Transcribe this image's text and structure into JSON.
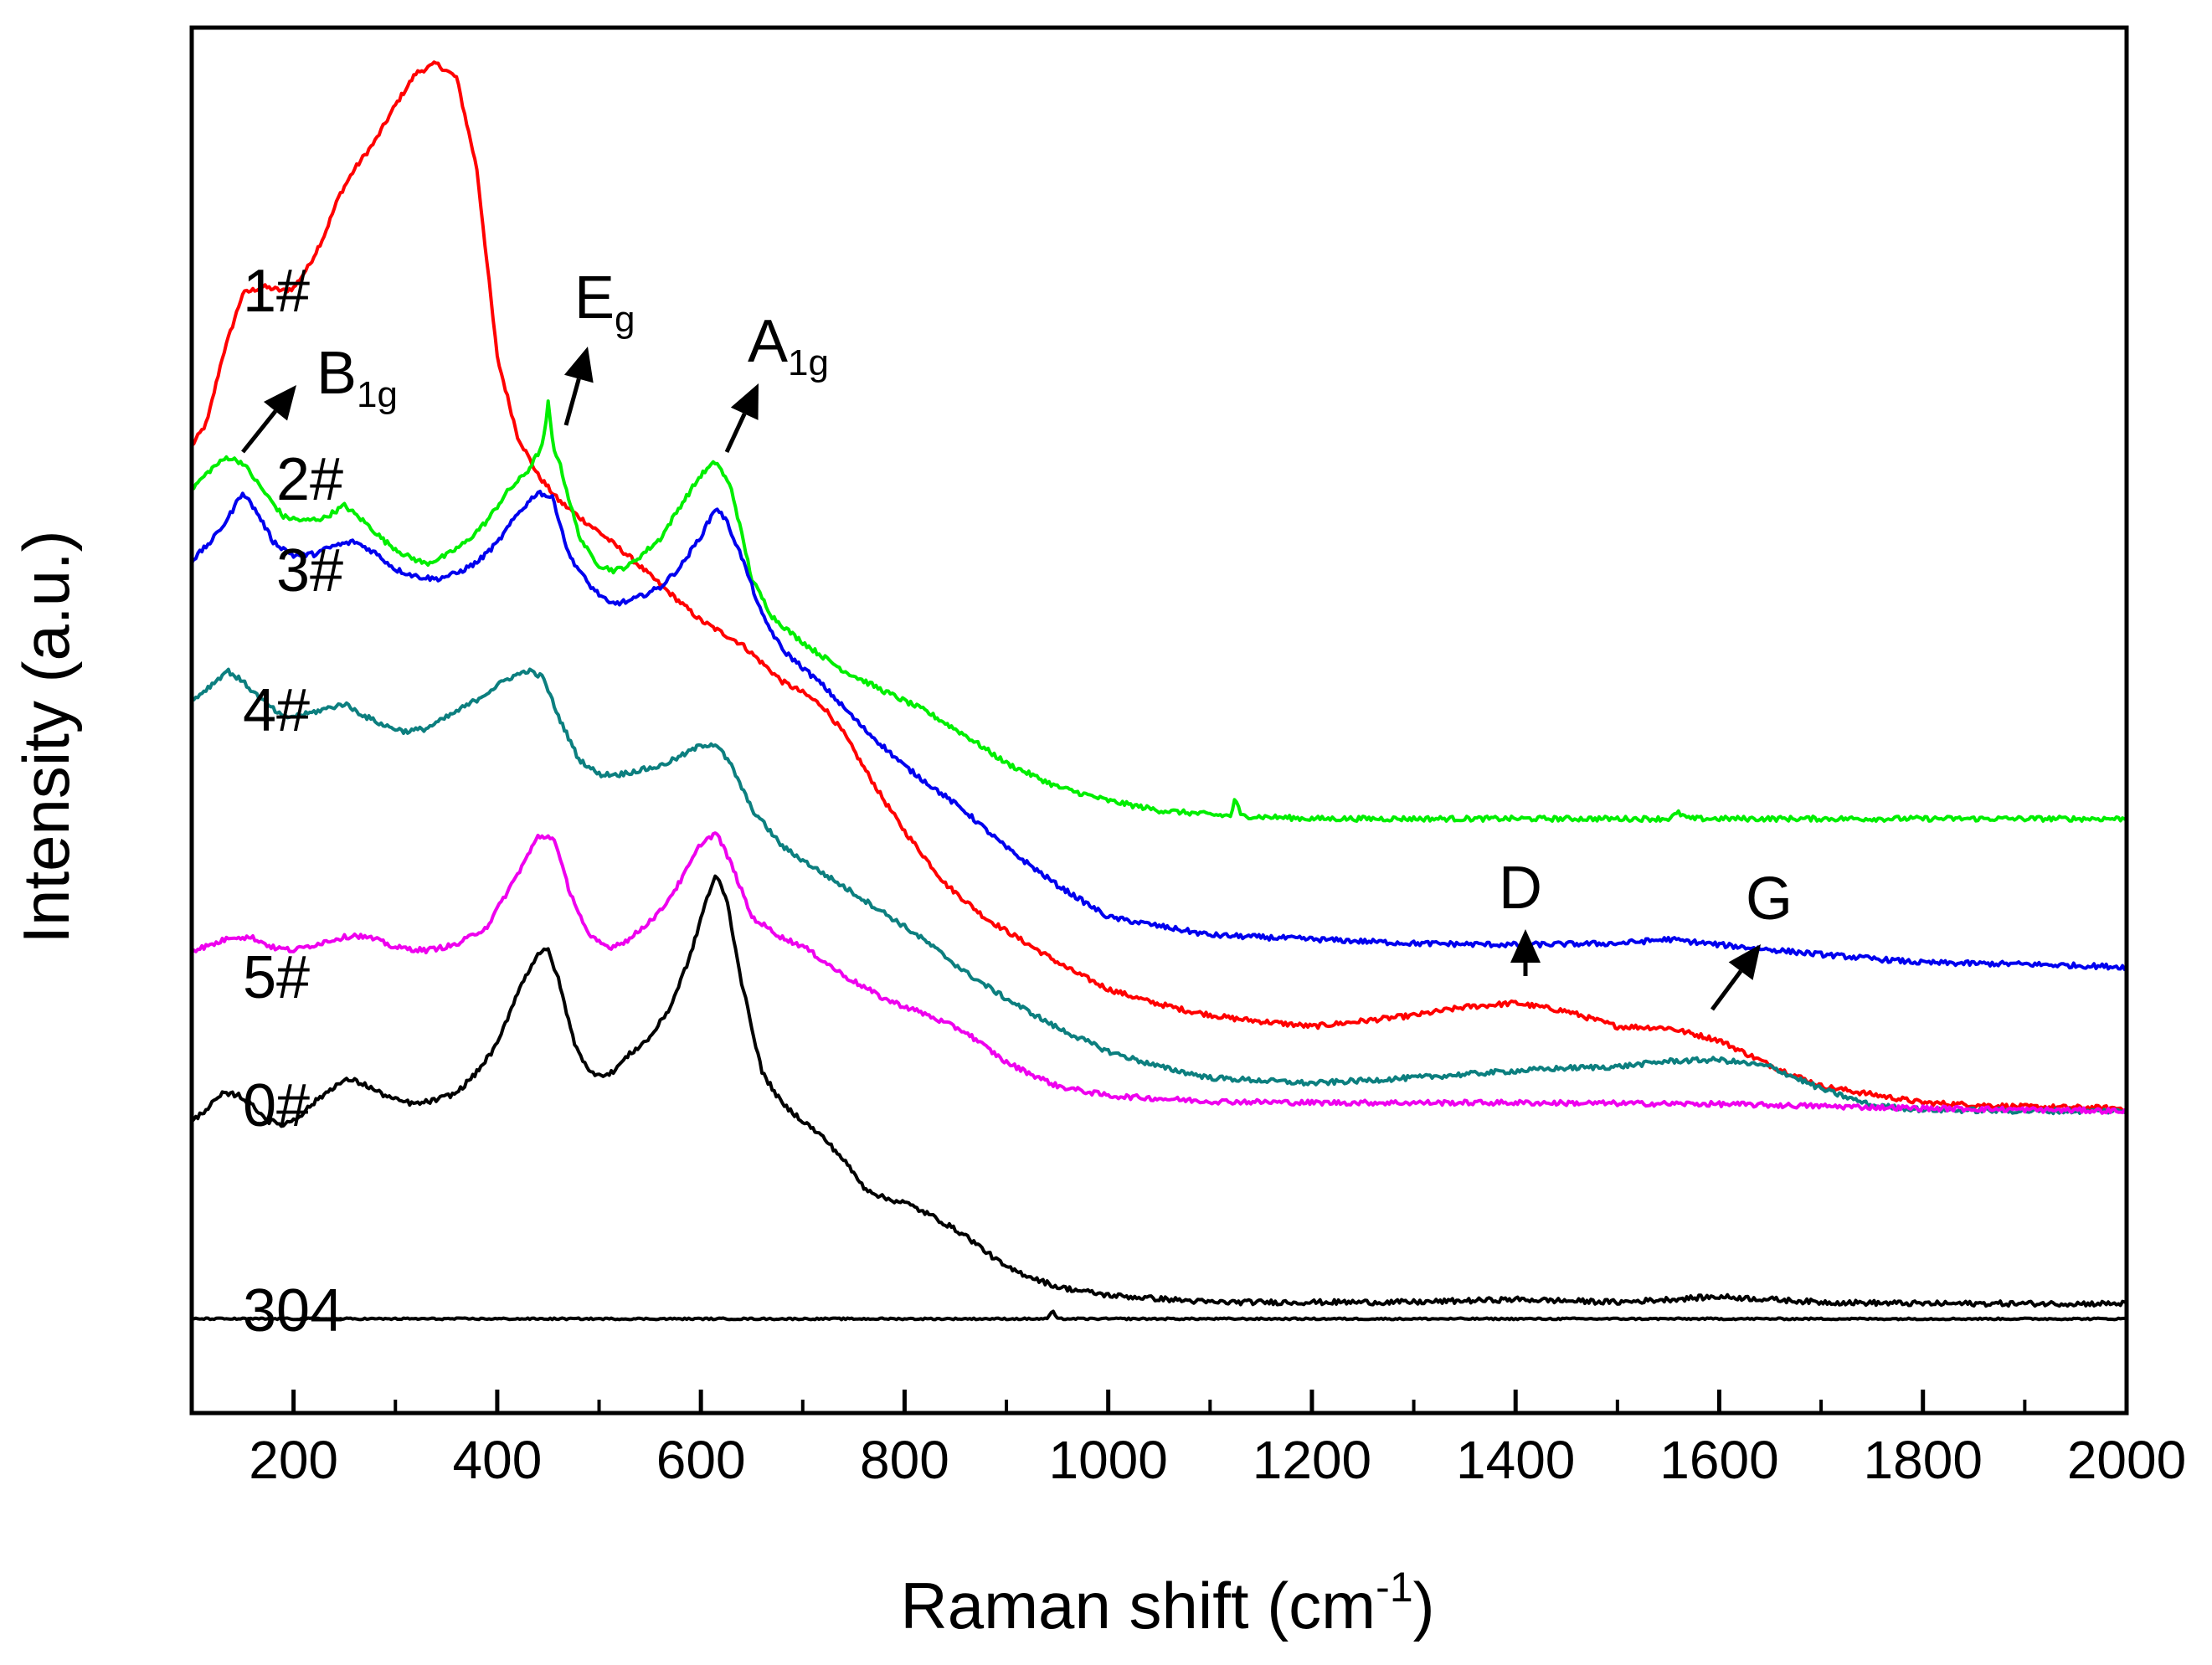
{
  "chart_data": {
    "type": "line",
    "title": "",
    "xlabel": "Raman shift (cm",
    "xlabel_superscript": "-1",
    "xlabel_close": ")",
    "ylabel": "Intensity (a.u.)",
    "xlim": [
      100,
      2000
    ],
    "ylim": [
      0,
      100
    ],
    "x_ticks": [
      200,
      400,
      600,
      800,
      1000,
      1200,
      1400,
      1600,
      1800,
      2000
    ],
    "x_tick_labels": [
      "200",
      "400",
      "600",
      "800",
      "1000",
      "1200",
      "1400",
      "1600",
      "1800",
      "2000"
    ],
    "y_ticks_labeled": false,
    "grid": false,
    "legend": "none (curves labeled inline)",
    "series": [
      {
        "name": "1#",
        "color": "#ff0000",
        "x": [
          100,
          115,
          130,
          150,
          170,
          190,
          200,
          215,
          230,
          245,
          260,
          280,
          300,
          320,
          340,
          360,
          380,
          400,
          420,
          440,
          460,
          480,
          500,
          530,
          560,
          600,
          640,
          680,
          700,
          720,
          740,
          760,
          780,
          800,
          840,
          880,
          920,
          960,
          1000,
          1040,
          1080,
          1120,
          1200,
          1300,
          1350,
          1400,
          1450,
          1500,
          1550,
          1600,
          1650,
          1700,
          1800,
          1900,
          2000
        ],
        "y": [
          69.8,
          71.5,
          76.2,
          80.8,
          81.3,
          81.0,
          81.2,
          82.8,
          85.0,
          87.9,
          89.8,
          91.8,
          94.4,
          96.7,
          97.4,
          96.4,
          89.8,
          76.2,
          70.5,
          67.7,
          65.9,
          64.7,
          63.6,
          61.8,
          59.8,
          57.2,
          55.5,
          52.8,
          52.0,
          51.0,
          49.1,
          46.6,
          44.2,
          42.0,
          38.2,
          35.7,
          33.9,
          32.1,
          30.6,
          29.7,
          29.0,
          28.5,
          27.9,
          28.7,
          29.3,
          29.6,
          29.0,
          27.9,
          27.8,
          26.9,
          25.1,
          23.6,
          22.4,
          22.1,
          22.0
        ]
      },
      {
        "name": "2#",
        "color": "#00ee00",
        "x": [
          100,
          120,
          135,
          150,
          170,
          190,
          210,
          230,
          250,
          270,
          290,
          310,
          330,
          350,
          370,
          390,
          410,
          430,
          445,
          450,
          455,
          460,
          470,
          480,
          490,
          500,
          515,
          530,
          560,
          580,
          600,
          615,
          630,
          650,
          670,
          690,
          710,
          740,
          780,
          820,
          860,
          900,
          950,
          1000,
          1050,
          1100,
          1120,
          1125,
          1130,
          1200,
          1300,
          1400,
          1500,
          1550,
          1560,
          1570,
          1700,
          1800,
          1900,
          2000
        ],
        "y": [
          66.7,
          68.2,
          69.0,
          68.6,
          66.6,
          64.7,
          64.4,
          64.6,
          65.5,
          64.3,
          62.9,
          61.9,
          61.3,
          61.9,
          62.9,
          64.4,
          66.5,
          68.0,
          69.9,
          72.9,
          69.7,
          68.9,
          66.1,
          63.4,
          62.1,
          61.2,
          60.8,
          61.2,
          63.1,
          65.5,
          67.7,
          68.7,
          66.7,
          60.2,
          57.5,
          56.2,
          55.1,
          53.6,
          52.1,
          50.7,
          48.9,
          46.9,
          45.2,
          44.2,
          43.5,
          43.2,
          43.1,
          44.4,
          43.1,
          42.9,
          42.9,
          42.9,
          42.9,
          42.9,
          43.3,
          42.9,
          42.9,
          42.9,
          42.9,
          42.9
        ]
      },
      {
        "name": "3#",
        "color": "#0000ee",
        "x": [
          100,
          120,
          135,
          150,
          165,
          180,
          200,
          220,
          240,
          260,
          280,
          300,
          320,
          340,
          360,
          380,
          400,
          420,
          440,
          455,
          470,
          490,
          510,
          530,
          560,
          580,
          600,
          615,
          625,
          640,
          660,
          680,
          700,
          720,
          760,
          800,
          860,
          900,
          950,
          1000,
          1100,
          1200,
          1300,
          1400,
          1500,
          1550,
          1600,
          1700,
          1800,
          1900,
          2000
        ],
        "y": [
          61.5,
          63.0,
          64.5,
          66.5,
          64.9,
          62.9,
          61.9,
          62.0,
          62.6,
          62.9,
          62.1,
          60.9,
          60.4,
          60.2,
          60.6,
          61.4,
          62.8,
          64.9,
          66.5,
          66.0,
          62.0,
          59.8,
          58.4,
          58.6,
          59.6,
          61.1,
          63.3,
          65.4,
          64.4,
          61.8,
          57.6,
          55.1,
          53.8,
          52.5,
          49.4,
          46.7,
          43.4,
          40.8,
          38.1,
          35.8,
          34.5,
          34.2,
          33.9,
          33.8,
          33.9,
          34.2,
          33.8,
          33.1,
          32.5,
          32.4,
          32.2
        ]
      },
      {
        "name": "4#",
        "color": "#0c7f7f",
        "x": [
          100,
          120,
          135,
          150,
          170,
          190,
          210,
          230,
          250,
          270,
          290,
          310,
          330,
          350,
          380,
          410,
          430,
          445,
          460,
          480,
          500,
          520,
          540,
          560,
          580,
          600,
          615,
          630,
          650,
          680,
          700,
          740,
          780,
          820,
          860,
          900,
          950,
          1000,
          1050,
          1100,
          1200,
          1300,
          1400,
          1450,
          1500,
          1550,
          1600,
          1650,
          1700,
          1750,
          1800,
          1900,
          2000
        ],
        "y": [
          51.4,
          52.6,
          53.6,
          52.8,
          51.4,
          50.2,
          50.4,
          50.8,
          51.2,
          50.3,
          49.6,
          49.2,
          49.4,
          50.2,
          51.5,
          53.0,
          53.6,
          53.1,
          50.3,
          47.2,
          46.1,
          46.1,
          46.4,
          46.7,
          47.4,
          48.2,
          48.3,
          46.7,
          43.6,
          40.9,
          39.9,
          38.0,
          36.1,
          34.1,
          31.8,
          29.9,
          27.8,
          26.1,
          25.0,
          24.2,
          23.8,
          24.2,
          24.7,
          24.9,
          25.0,
          25.4,
          25.5,
          25.0,
          23.4,
          22.2,
          21.9,
          21.8,
          21.8
        ]
      },
      {
        "name": "5#",
        "color": "#ee00ee",
        "x": [
          100,
          120,
          140,
          160,
          180,
          200,
          220,
          240,
          260,
          280,
          300,
          330,
          360,
          390,
          420,
          440,
          455,
          470,
          490,
          510,
          530,
          560,
          580,
          600,
          615,
          630,
          650,
          680,
          700,
          740,
          780,
          820,
          860,
          900,
          950,
          1000,
          1100,
          1200,
          1400,
          1600,
          1800,
          2000
        ],
        "y": [
          33.4,
          33.8,
          34.4,
          34.3,
          33.6,
          33.4,
          33.8,
          34.2,
          34.5,
          34.2,
          33.6,
          33.4,
          33.8,
          35.1,
          38.9,
          41.6,
          41.6,
          37.9,
          34.4,
          33.6,
          34.2,
          36.2,
          38.4,
          41.1,
          41.9,
          39.6,
          35.8,
          34.3,
          33.7,
          31.6,
          29.9,
          28.8,
          27.5,
          25.3,
          23.6,
          22.9,
          22.5,
          22.4,
          22.4,
          22.3,
          22.0,
          21.8
        ]
      },
      {
        "name": "0#",
        "color": "#000000",
        "x": [
          100,
          115,
          130,
          145,
          160,
          175,
          190,
          205,
          220,
          240,
          255,
          270,
          285,
          300,
          320,
          340,
          360,
          380,
          400,
          420,
          440,
          450,
          460,
          475,
          490,
          510,
          530,
          550,
          570,
          590,
          605,
          615,
          625,
          640,
          660,
          680,
          700,
          720,
          740,
          760,
          780,
          800,
          830,
          860,
          900,
          950,
          1000,
          1100,
          1200,
          1300,
          1400,
          1500,
          1600,
          1700,
          1800,
          1900,
          2000
        ],
        "y": [
          21.0,
          22.0,
          23.0,
          23.0,
          22.2,
          21.1,
          20.8,
          21.4,
          22.4,
          23.6,
          24.1,
          23.7,
          23.1,
          22.6,
          22.3,
          22.6,
          23.1,
          24.6,
          26.6,
          30.4,
          33.2,
          33.4,
          31.3,
          26.9,
          24.6,
          24.4,
          25.9,
          27.1,
          29.3,
          33.1,
          37.0,
          38.8,
          37.2,
          31.1,
          24.6,
          22.3,
          21.1,
          19.9,
          18.3,
          16.3,
          15.5,
          15.2,
          14.1,
          12.8,
          10.5,
          9.1,
          8.5,
          8.0,
          8.0,
          8.0,
          8.2,
          8.0,
          8.4,
          8.0,
          7.9,
          7.9,
          7.9
        ]
      },
      {
        "name": "304",
        "color": "#000000",
        "x": [
          100,
          900,
          940,
          945,
          950,
          1000,
          2000
        ],
        "y": [
          6.8,
          6.8,
          6.8,
          7.4,
          6.8,
          6.8,
          6.8
        ]
      }
    ],
    "curve_labels": [
      "1#",
      "2#",
      "3#",
      "4#",
      "5#",
      "0#",
      "304"
    ],
    "annotations": [
      {
        "label": "B",
        "subscript": "1g",
        "arrow_to_x": 120,
        "arrow_to_intensity": 69.0
      },
      {
        "label": "E",
        "subscript": "g",
        "arrow_to_x": 440,
        "arrow_to_intensity": 70.2
      },
      {
        "label": "A",
        "subscript": "1g",
        "arrow_to_x": 600,
        "arrow_to_intensity": 71.8
      },
      {
        "label": "D",
        "subscript": "",
        "arrow_to_x": 1400,
        "arrow_to_intensity": 31.0
      },
      {
        "label": "G",
        "subscript": "",
        "arrow_to_x": 1580,
        "arrow_to_intensity": 28.5
      }
    ]
  }
}
